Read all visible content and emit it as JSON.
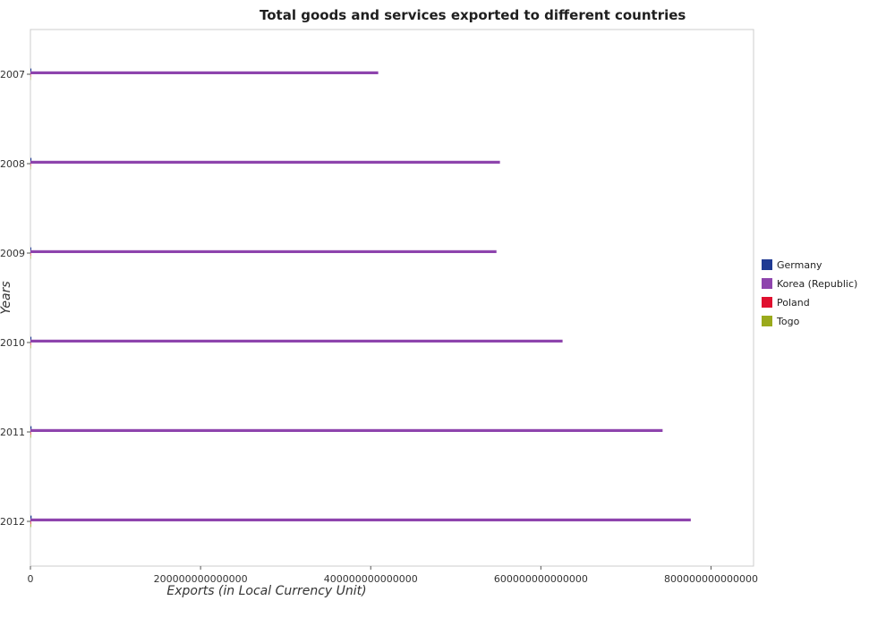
{
  "chart_data": {
    "type": "bar",
    "orientation": "horizontal",
    "title": "Total goods and services exported to different countries",
    "xlabel": "Exports (in Local Currency Unit)",
    "ylabel": "Years",
    "categories": [
      "2007",
      "2008",
      "2009",
      "2010",
      "2011",
      "2012"
    ],
    "xlim": [
      0,
      850000000000000
    ],
    "xticks": [
      0,
      200000000000000,
      400000000000000,
      600000000000000,
      800000000000000
    ],
    "xtick_labels": [
      "0",
      "200000000000000",
      "400000000000000",
      "600000000000000",
      "800000000000000"
    ],
    "series": [
      {
        "name": "Germany",
        "color": "#1f3a93",
        "values": [
          1120000000000,
          1180000000000,
          1000000000000,
          1170000000000,
          1310000000000,
          1380000000000
        ]
      },
      {
        "name": "Korea (Republic)",
        "color": "#8e44ad",
        "values": [
          408800000000000,
          551900000000000,
          547800000000000,
          625500000000000,
          743100000000000,
          776200000000000
        ]
      },
      {
        "name": "Poland",
        "color": "#e0102f",
        "values": [
          430000000000,
          470000000000,
          510000000000,
          560000000000,
          630000000000,
          690000000000
        ]
      },
      {
        "name": "Togo",
        "color": "#9aaa1c",
        "values": [
          380000000000,
          400000000000,
          520000000000,
          600000000000,
          680000000000,
          790000000000
        ]
      }
    ],
    "legend_position": "right",
    "grid": false
  }
}
